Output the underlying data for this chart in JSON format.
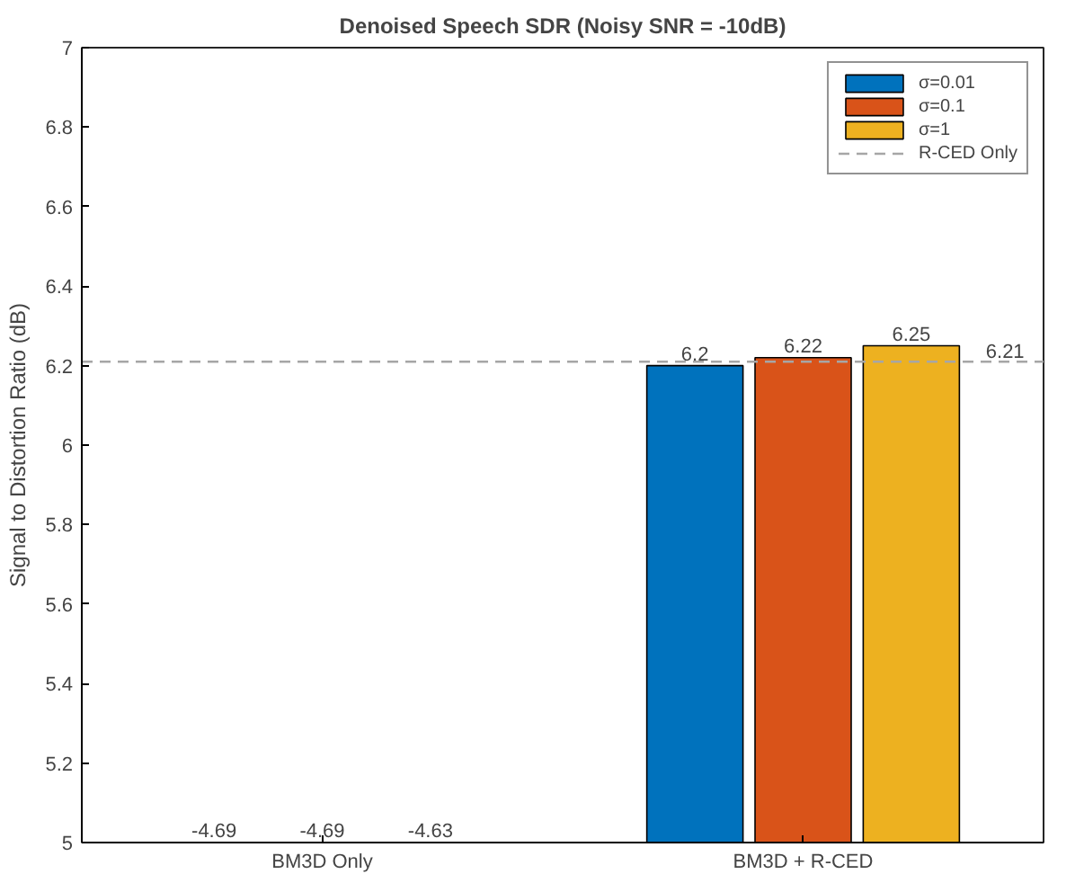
{
  "chart_data": {
    "type": "bar",
    "title": "Denoised Speech SDR (Noisy SNR = -10dB)",
    "ylabel": "Signal to Distortion Ratio (dB)",
    "categories": [
      "BM3D Only",
      "BM3D + R-CED"
    ],
    "series": [
      {
        "name": "σ=0.01",
        "color": "#0072bd",
        "values": [
          null,
          6.2
        ],
        "value_labels": [
          "-4.69",
          "6.2"
        ]
      },
      {
        "name": "σ=0.1",
        "color": "#d95319",
        "values": [
          null,
          6.22
        ],
        "value_labels": [
          "-4.69",
          "6.22"
        ]
      },
      {
        "name": "σ=1",
        "color": "#edb120",
        "values": [
          null,
          6.25
        ],
        "value_labels": [
          "-4.63",
          "6.25"
        ]
      }
    ],
    "ylim": [
      5,
      7
    ],
    "yticks": [
      5,
      5.2,
      5.4,
      5.6,
      5.8,
      6,
      6.2,
      6.4,
      6.6,
      6.8,
      7
    ],
    "ref_lines": [
      {
        "axis": "y",
        "value": 6.21,
        "label": "R-CED Only",
        "color": "#a6a6a6",
        "line_style": "dashed"
      }
    ],
    "annotations": [
      {
        "text": "6.21",
        "y": 6.21
      }
    ],
    "legend": "top right",
    "grid": false
  }
}
